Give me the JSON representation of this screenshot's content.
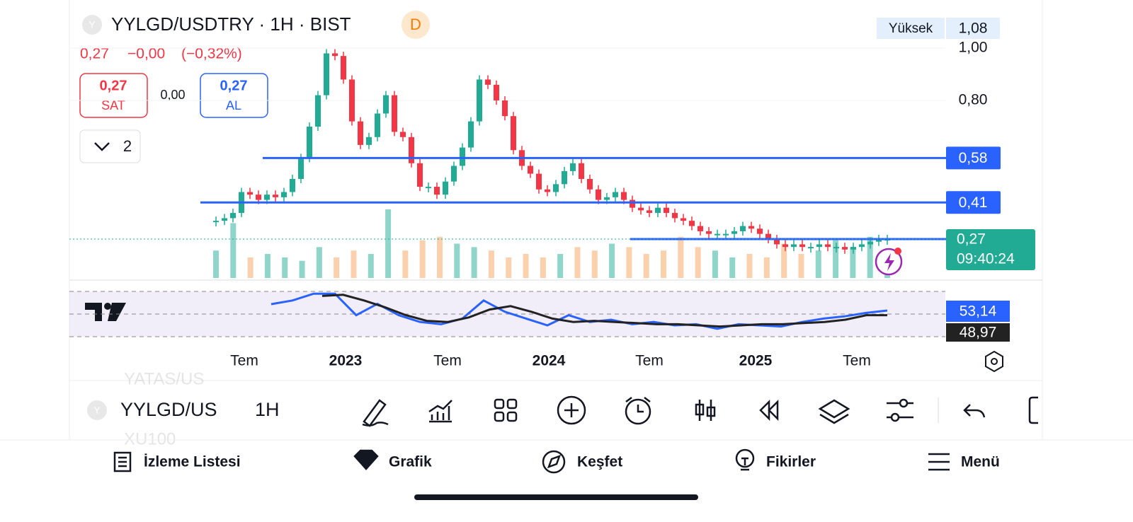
{
  "header": {
    "icon": "Y",
    "symbol": "YYLGD/USDTRY · 1H · BIST",
    "badge": "D",
    "price": "0,27",
    "change": "−0,00",
    "change_pct": "(−0,32%)",
    "sell": {
      "price": "0,27",
      "label": "SAT"
    },
    "spread": "0,00",
    "buy": {
      "price": "0,27",
      "label": "AL"
    },
    "indicators": "2",
    "high": {
      "label": "Yüksek",
      "value": "1,08"
    }
  },
  "chart_data": {
    "type": "candlestick",
    "closes": [
      0.34,
      0.35,
      0.37,
      0.45,
      0.44,
      0.42,
      0.44,
      0.43,
      0.45,
      0.5,
      0.58,
      0.7,
      0.82,
      0.98,
      0.97,
      0.88,
      0.72,
      0.63,
      0.66,
      0.75,
      0.82,
      0.68,
      0.66,
      0.56,
      0.47,
      0.47,
      0.44,
      0.49,
      0.55,
      0.62,
      0.72,
      0.88,
      0.86,
      0.8,
      0.74,
      0.61,
      0.55,
      0.52,
      0.46,
      0.45,
      0.48,
      0.53,
      0.56,
      0.5,
      0.46,
      0.42,
      0.43,
      0.45,
      0.42,
      0.39,
      0.38,
      0.37,
      0.39,
      0.37,
      0.35,
      0.34,
      0.32,
      0.3,
      0.29,
      0.29,
      0.29,
      0.3,
      0.32,
      0.31,
      0.29,
      0.27,
      0.25,
      0.24,
      0.25,
      0.24,
      0.24,
      0.25,
      0.24,
      0.24,
      0.23,
      0.24,
      0.25,
      0.26,
      0.27,
      0.27
    ],
    "volumes": [
      40,
      80,
      30,
      35,
      30,
      25,
      45,
      30,
      40,
      35,
      100,
      40,
      55,
      60,
      50,
      45,
      40,
      30,
      35,
      30,
      35,
      45,
      40,
      50,
      45,
      35,
      40,
      60,
      45,
      40,
      30,
      35,
      30,
      50,
      35,
      40,
      55,
      45,
      60,
      35
    ],
    "ylim": [
      0.116,
      1.184
    ],
    "yticks": [
      {
        "value": 1.0,
        "label": "1,00"
      },
      {
        "value": 0.8,
        "label": "0,80"
      }
    ],
    "lines": [
      {
        "value": 0.58,
        "label": "0,58"
      },
      {
        "value": 0.41,
        "label": "0,41"
      },
      {
        "value": 0.27,
        "label": "0,27"
      }
    ],
    "last": {
      "value": 0.27,
      "label": "0,27",
      "countdown": "09:40:24"
    },
    "x_labels": [
      "Tem",
      "2023",
      "Tem",
      "2024",
      "Tem",
      "2025",
      "Tem"
    ],
    "up_color": "#22ab94",
    "down_color": "#f23645",
    "line_color": "#2962ff",
    "rsi": {
      "values": [
        58.75,
        62,
        68,
        68,
        49,
        59,
        49,
        43,
        41,
        46,
        62,
        52,
        46,
        40,
        49,
        43,
        45,
        41,
        43,
        40,
        41,
        37,
        41,
        40,
        39,
        43,
        46,
        48,
        51,
        53.14
      ],
      "ma": [
        66,
        67,
        62,
        56,
        49,
        44,
        43,
        47,
        54,
        57,
        52,
        46,
        43,
        44,
        43,
        42,
        41,
        41,
        40,
        39,
        40,
        41,
        41,
        42,
        43,
        45,
        49,
        48.97
      ],
      "ylim": [
        30,
        70
      ],
      "bands": [
        70,
        50,
        30
      ],
      "value_label": {
        "value": 53.14,
        "label": "53,14"
      },
      "ma_label": {
        "value": 48.97,
        "label": "48,97"
      },
      "color": "#2962ff",
      "ma_color": "#222222"
    }
  },
  "toolbar": {
    "symbol": "YYLGD/US",
    "interval": "1H",
    "ghost_above": "YATAS/US",
    "ghost_below": "XU100"
  },
  "nav": [
    "İzleme Listesi",
    "Grafik",
    "Keşfet",
    "Fikirler",
    "Menü"
  ]
}
